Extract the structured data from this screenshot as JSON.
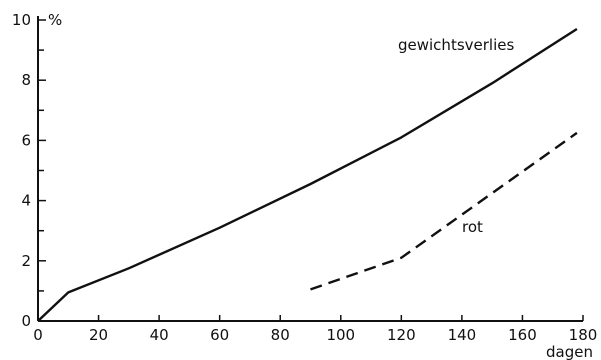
{
  "chart_data": {
    "type": "line",
    "x_unit": "dagen",
    "y_unit": "%",
    "xlim": [
      0,
      180
    ],
    "ylim": [
      0,
      10
    ],
    "x_ticks": [
      0,
      20,
      40,
      60,
      80,
      100,
      120,
      140,
      160,
      180
    ],
    "y_ticks": [
      0,
      2,
      4,
      6,
      8,
      10
    ],
    "grid": false,
    "legend": "none",
    "series": [
      {
        "name": "gewichtsverlies",
        "style": "solid",
        "color": "#111111",
        "x": [
          0,
          10,
          30,
          60,
          90,
          120,
          150,
          178
        ],
        "y": [
          0,
          0.95,
          1.75,
          3.1,
          4.55,
          6.1,
          7.9,
          9.7
        ]
      },
      {
        "name": "rot",
        "style": "dashed",
        "color": "#111111",
        "x": [
          90,
          120,
          150,
          178
        ],
        "y": [
          1.05,
          2.1,
          4.25,
          6.25
        ]
      }
    ]
  }
}
